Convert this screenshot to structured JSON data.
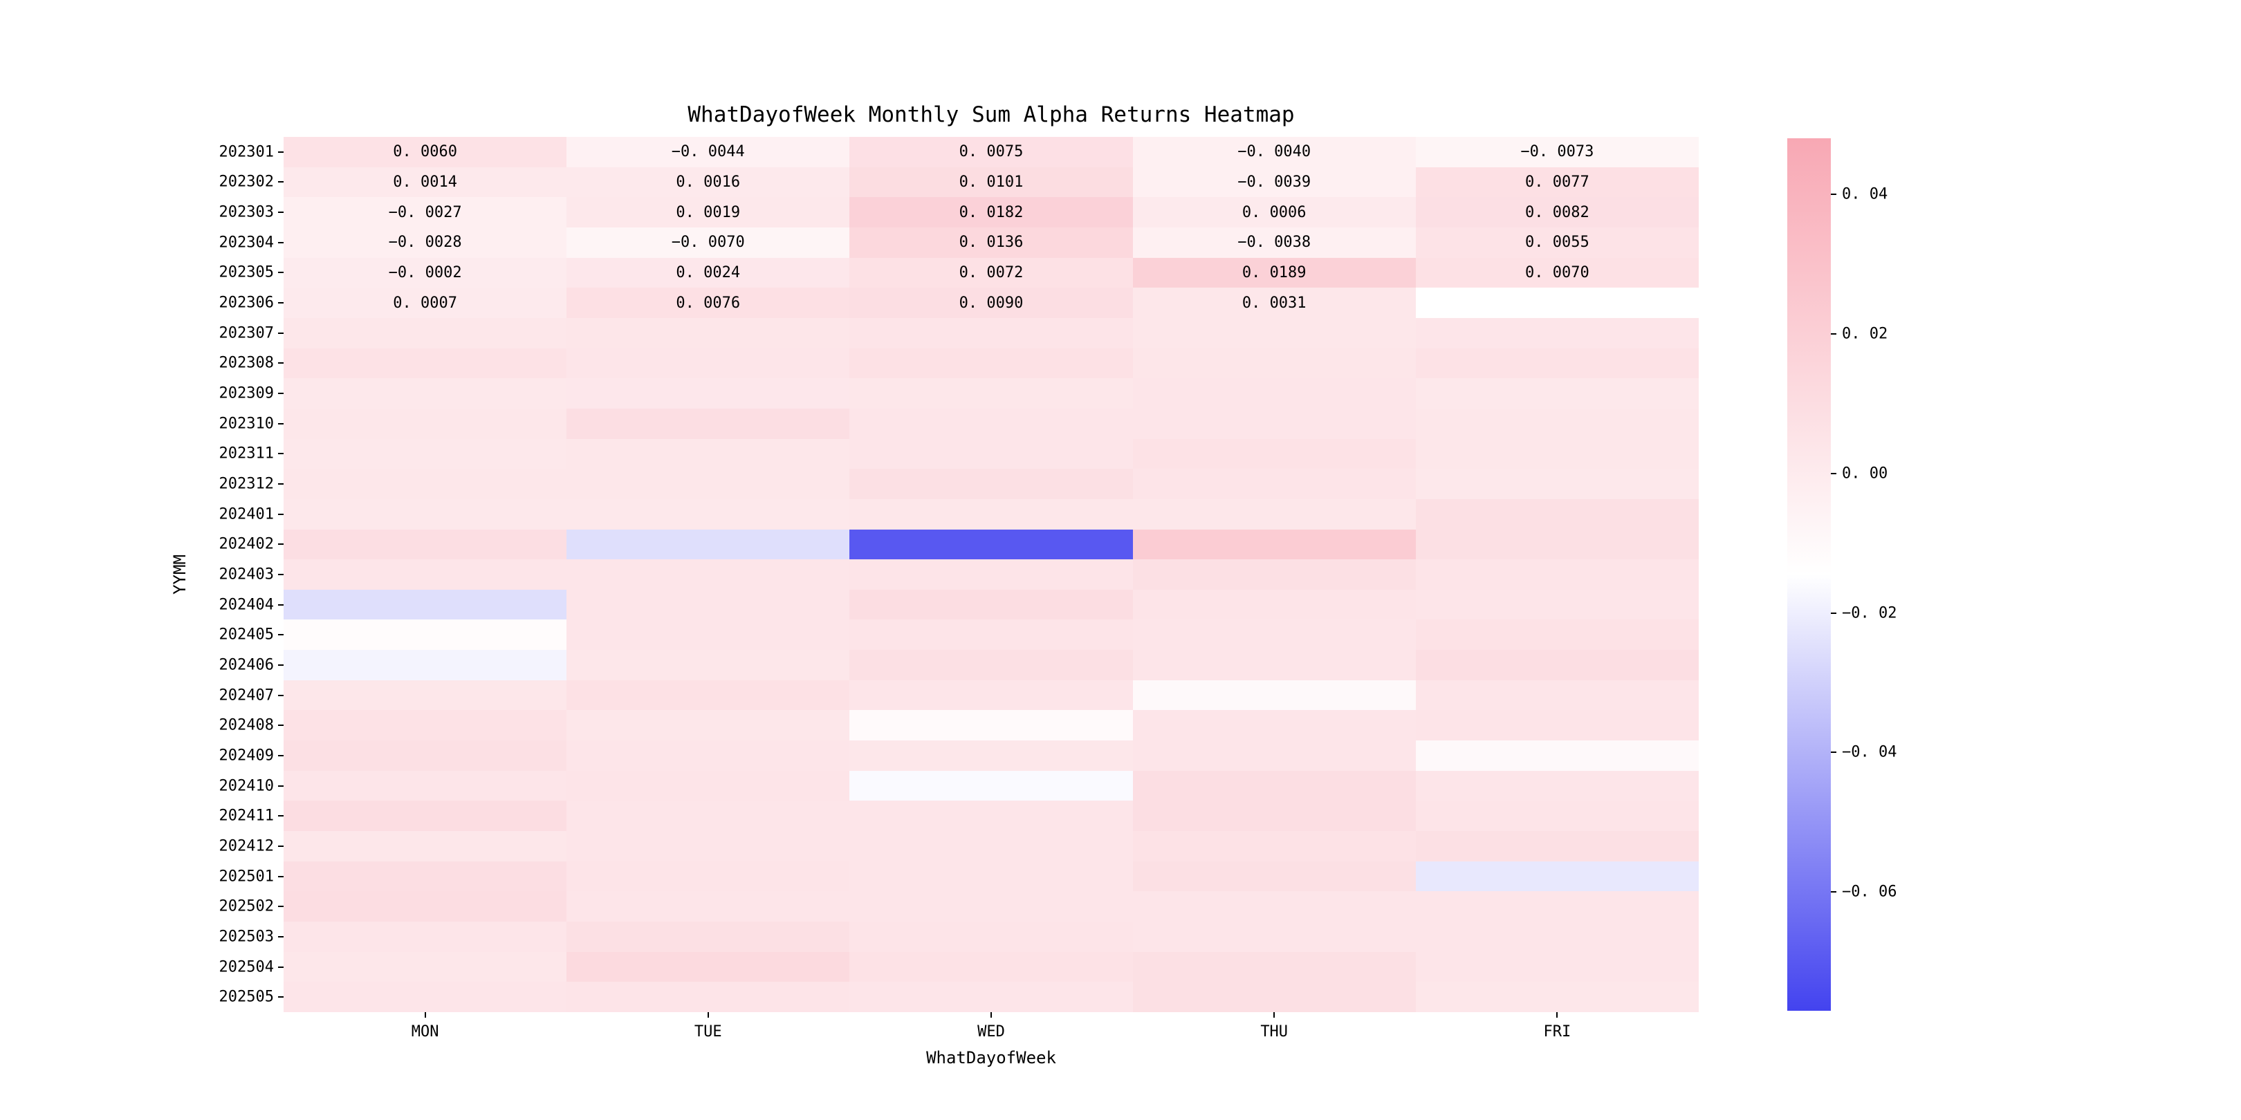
{
  "chart_data": {
    "type": "heatmap",
    "title": "WhatDayofWeek Monthly Sum Alpha Returns Heatmap",
    "xlabel": "WhatDayofWeek",
    "ylabel": "YYMM",
    "grid": false,
    "legend_position": "right-colorbar",
    "columns": [
      "MON",
      "TUE",
      "WED",
      "THU",
      "FRI"
    ],
    "rows": [
      "202301",
      "202302",
      "202303",
      "202304",
      "202305",
      "202306",
      "202307",
      "202308",
      "202309",
      "202310",
      "202311",
      "202312",
      "202401",
      "202402",
      "202403",
      "202404",
      "202405",
      "202406",
      "202407",
      "202408",
      "202409",
      "202410",
      "202411",
      "202412",
      "202501",
      "202502",
      "202503",
      "202504",
      "202505"
    ],
    "values": [
      [
        0.006,
        -0.0044,
        0.0075,
        -0.004,
        -0.0073
      ],
      [
        0.0014,
        0.0016,
        0.0101,
        -0.0039,
        0.0077
      ],
      [
        -0.0027,
        0.0019,
        0.0182,
        0.0006,
        0.0082
      ],
      [
        -0.0028,
        -0.007,
        0.0136,
        -0.0038,
        0.0055
      ],
      [
        -0.0002,
        0.0024,
        0.0072,
        0.0189,
        0.007
      ],
      [
        0.0007,
        0.0076,
        0.009,
        0.0031,
        null
      ],
      [
        0.003,
        0.0035,
        0.005,
        0.003,
        0.004
      ],
      [
        0.006,
        0.004,
        0.007,
        0.0035,
        0.006
      ],
      [
        0.002,
        0.0025,
        0.003,
        0.004,
        0.002
      ],
      [
        0.003,
        0.009,
        0.004,
        0.004,
        0.003
      ],
      [
        0.002,
        0.003,
        0.004,
        0.006,
        0.003
      ],
      [
        0.003,
        0.003,
        0.008,
        0.005,
        0.002
      ],
      [
        0.002,
        0.002,
        0.003,
        0.003,
        0.008
      ],
      [
        0.009,
        -0.025,
        -0.07,
        0.022,
        0.008
      ],
      [
        0.004,
        0.004,
        0.005,
        0.008,
        0.005
      ],
      [
        -0.025,
        0.004,
        0.01,
        0.005,
        0.004
      ],
      [
        -0.012,
        0.004,
        0.005,
        0.004,
        0.006
      ],
      [
        -0.018,
        0.003,
        0.008,
        0.004,
        0.009
      ],
      [
        0.003,
        0.007,
        0.004,
        -0.01,
        0.004
      ],
      [
        0.006,
        0.003,
        -0.011,
        0.004,
        0.005
      ],
      [
        0.008,
        0.004,
        0.003,
        0.004,
        -0.01
      ],
      [
        0.004,
        0.005,
        -0.016,
        0.009,
        0.004
      ],
      [
        0.01,
        0.004,
        0.004,
        0.009,
        0.005
      ],
      [
        0.003,
        0.004,
        0.004,
        0.006,
        0.008
      ],
      [
        0.009,
        0.005,
        0.004,
        0.008,
        -0.022
      ],
      [
        0.01,
        0.004,
        0.004,
        0.004,
        0.004
      ],
      [
        0.004,
        0.008,
        0.005,
        0.004,
        0.004
      ],
      [
        0.003,
        0.012,
        0.006,
        0.008,
        0.004
      ],
      [
        0.004,
        0.005,
        0.004,
        0.008,
        0.003
      ]
    ],
    "cell_labels": [
      [
        "0. 0060",
        "−0. 0044",
        "0. 0075",
        "−0. 0040",
        "−0. 0073"
      ],
      [
        "0. 0014",
        "0. 0016",
        "0. 0101",
        "−0. 0039",
        "0. 0077"
      ],
      [
        "−0. 0027",
        "0. 0019",
        "0. 0182",
        "0. 0006",
        "0. 0082"
      ],
      [
        "−0. 0028",
        "−0. 0070",
        "0. 0136",
        "−0. 0038",
        "0. 0055"
      ],
      [
        "−0. 0002",
        "0. 0024",
        "0. 0072",
        "0. 0189",
        "0. 0070"
      ],
      [
        "0. 0007",
        "0. 0076",
        "0. 0090",
        "0. 0031",
        ""
      ]
    ],
    "colorbar": {
      "vmin": -0.077,
      "vmax": 0.048,
      "tick_values": [
        0.04,
        0.02,
        0.0,
        -0.02,
        -0.04,
        -0.06
      ],
      "tick_labels": [
        "0. 04",
        "0. 02",
        "0. 00",
        "−0. 02",
        "−0. 04",
        "−0. 06"
      ],
      "color_max": "#f8a8b4",
      "color_mid": "#ffffff",
      "color_min": "#4343ef",
      "nan_color": "#ffffff"
    }
  }
}
